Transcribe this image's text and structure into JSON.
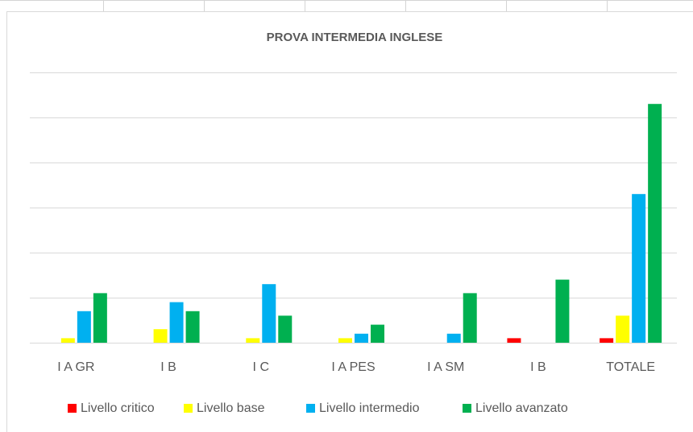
{
  "chart_data": {
    "type": "bar",
    "title": "PROVA INTERMEDIA INGLESE",
    "categories": [
      "I A GR",
      "I B",
      "I C",
      "I A PES",
      "I A SM",
      "I B",
      "TOTALE"
    ],
    "series": [
      {
        "name": "Livello critico",
        "color": "#ff0000",
        "values": [
          0,
          0,
          0,
          0,
          0,
          1,
          1
        ]
      },
      {
        "name": "Livello base",
        "color": "#ffff00",
        "values": [
          1,
          3,
          1,
          1,
          0,
          0,
          6
        ]
      },
      {
        "name": "Livello intermedio",
        "color": "#00b0f0",
        "values": [
          7,
          9,
          13,
          2,
          2,
          0,
          33
        ]
      },
      {
        "name": "Livello avanzato",
        "color": "#00b050",
        "values": [
          11,
          7,
          6,
          4,
          11,
          14,
          53
        ]
      }
    ],
    "ylim": [
      0,
      60
    ],
    "yticks": [
      0,
      10,
      20,
      30,
      40,
      50,
      60
    ],
    "grid": true,
    "legend": "bottom"
  }
}
